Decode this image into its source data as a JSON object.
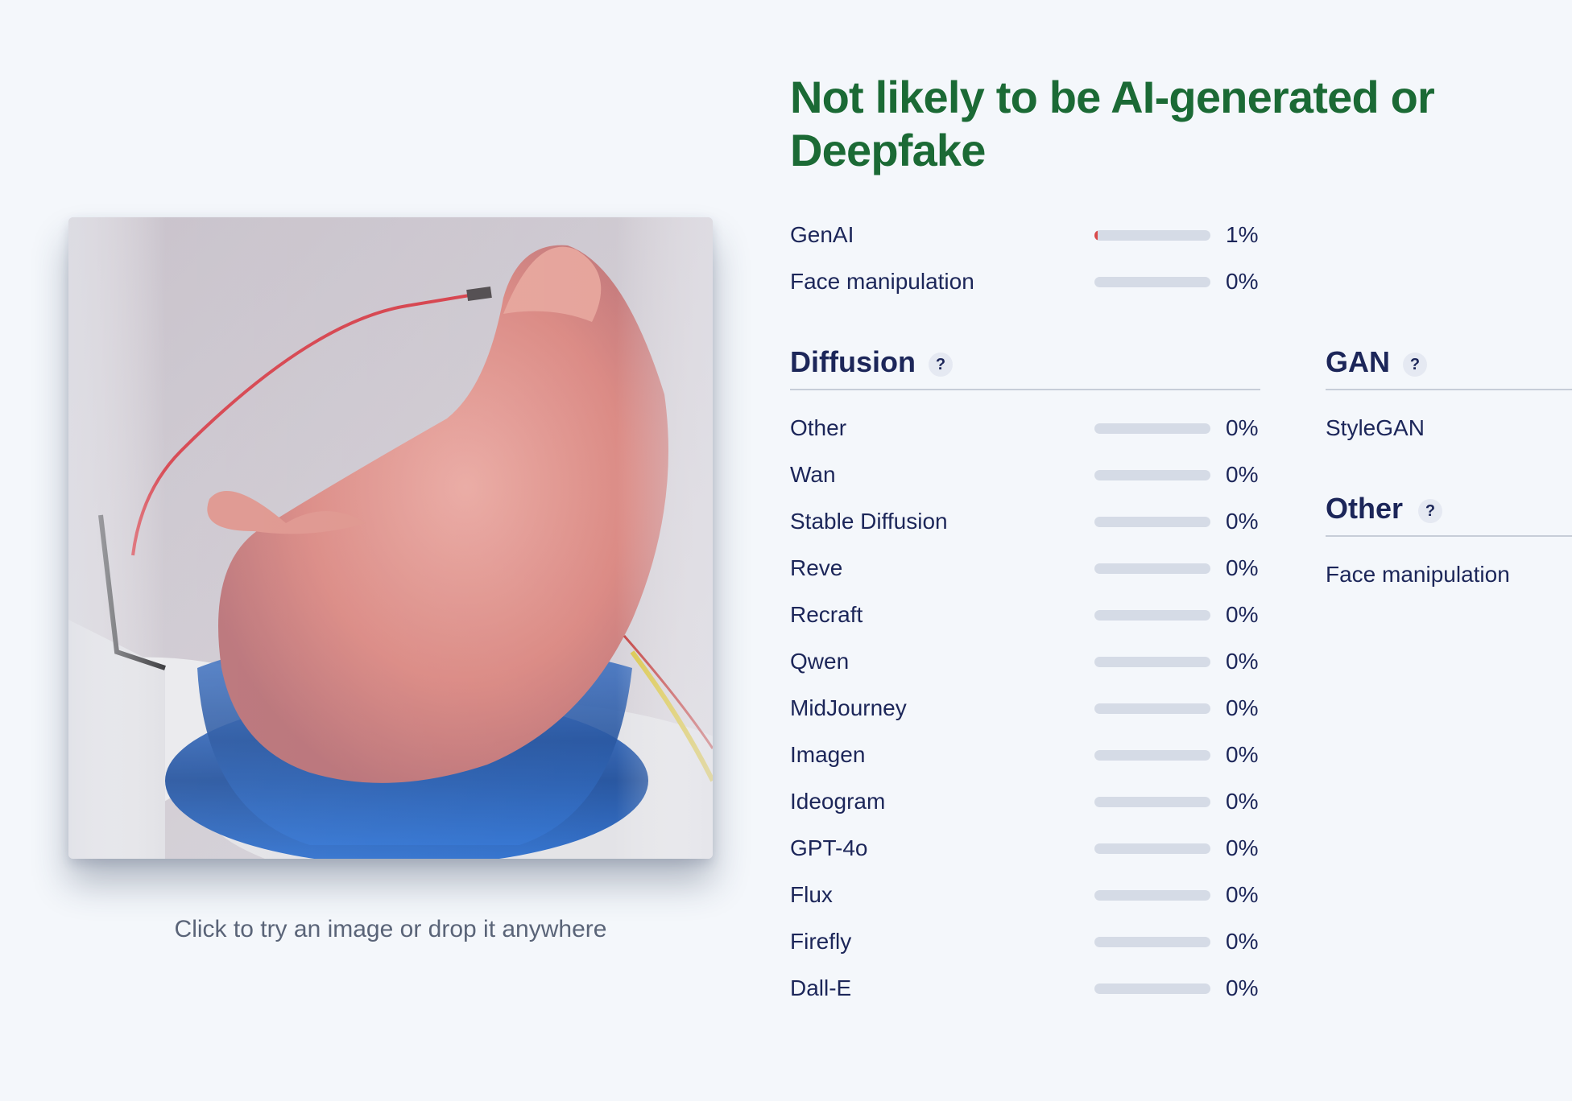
{
  "verdict": {
    "line1": "Not likely to be AI-generated or",
    "line2": "Deepfake"
  },
  "upload_hint": "Click to try an image or drop it anywhere",
  "summary": [
    {
      "label": "GenAI",
      "value": 0.01,
      "pct": "1%"
    },
    {
      "label": "Face manipulation",
      "value": 0,
      "pct": "0%"
    }
  ],
  "diffusion": {
    "title": "Diffusion",
    "help": "?",
    "items": [
      {
        "label": "Other",
        "value": 0,
        "pct": "0%"
      },
      {
        "label": "Wan",
        "value": 0,
        "pct": "0%"
      },
      {
        "label": "Stable Diffusion",
        "value": 0,
        "pct": "0%"
      },
      {
        "label": "Reve",
        "value": 0,
        "pct": "0%"
      },
      {
        "label": "Recraft",
        "value": 0,
        "pct": "0%"
      },
      {
        "label": "Qwen",
        "value": 0,
        "pct": "0%"
      },
      {
        "label": "MidJourney",
        "value": 0,
        "pct": "0%"
      },
      {
        "label": "Imagen",
        "value": 0,
        "pct": "0%"
      },
      {
        "label": "Ideogram",
        "value": 0,
        "pct": "0%"
      },
      {
        "label": "GPT-4o",
        "value": 0,
        "pct": "0%"
      },
      {
        "label": "Flux",
        "value": 0,
        "pct": "0%"
      },
      {
        "label": "Firefly",
        "value": 0,
        "pct": "0%"
      },
      {
        "label": "Dall-E",
        "value": 0,
        "pct": "0%"
      }
    ]
  },
  "gan": {
    "title": "GAN",
    "help": "?",
    "items": [
      {
        "label": "StyleGAN"
      }
    ]
  },
  "other": {
    "title": "Other",
    "help": "?",
    "items": [
      {
        "label": "Face manipulation"
      }
    ]
  },
  "colors": {
    "verdict": "#1b6a35",
    "text": "#1c2659",
    "bar_track": "#d5dbe6",
    "bar_fill": "#d94a4a"
  }
}
